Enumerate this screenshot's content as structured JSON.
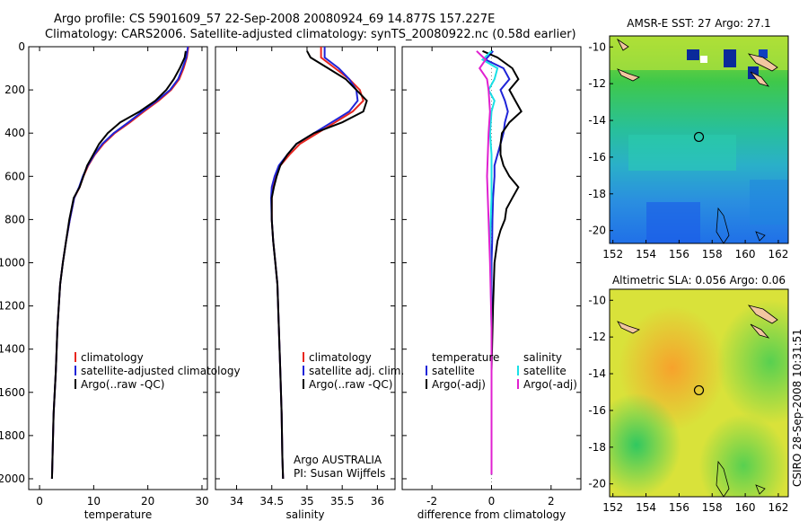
{
  "header": {
    "line1": "Argo profile: CS 5901609_57 22-Sep-2008 20080924_69 14.877S 157.227E",
    "line2": "Climatology: CARS2006. Satellite-adjusted climatology: synTS_20080922.nc (0.58d earlier)"
  },
  "side_text": "CSIRO 28-Sep-2008 10:31:51",
  "colors": {
    "clim": "#e8261f",
    "sat": "#1f24d8",
    "argo": "#000000",
    "sal_sat": "#19e0e6",
    "sal_argo": "#e020d0"
  },
  "chart_data": [
    {
      "type": "line",
      "id": "temperature",
      "xlabel": "temperature",
      "ylabel": "",
      "xlim": [
        -2,
        31
      ],
      "ylim": [
        2050,
        0
      ],
      "xticks": [
        0,
        10,
        20,
        30
      ],
      "yticks": [
        0,
        200,
        400,
        600,
        800,
        1000,
        1200,
        1400,
        1600,
        1800,
        2000
      ],
      "legend": [
        "climatology",
        "satellite-adjusted climatology",
        "Argo(..raw -QC)"
      ],
      "series": [
        {
          "name": "climatology",
          "x": [
            27.5,
            27.2,
            26.6,
            25.8,
            24.3,
            22.0,
            19.3,
            16.7,
            13.9,
            11.8,
            10.2,
            9.0,
            8.1,
            7.4,
            6.4,
            5.6,
            4.9,
            4.3,
            3.8,
            3.3,
            3.0,
            2.6,
            2.4,
            2.3
          ],
          "y": [
            0,
            50,
            100,
            150,
            200,
            250,
            300,
            350,
            400,
            450,
            500,
            550,
            600,
            650,
            700,
            800,
            900,
            1000,
            1100,
            1300,
            1500,
            1700,
            1900,
            2000
          ]
        },
        {
          "name": "satellite",
          "x": [
            27.4,
            27.1,
            26.4,
            25.6,
            24.1,
            21.7,
            19.0,
            16.4,
            13.7,
            11.6,
            10.1,
            8.9,
            8.0,
            7.3,
            6.4,
            5.6,
            4.9,
            4.3,
            3.8,
            3.3,
            3.0,
            2.6,
            2.4,
            2.3
          ],
          "y": [
            0,
            50,
            100,
            150,
            200,
            250,
            300,
            350,
            400,
            450,
            500,
            550,
            600,
            650,
            700,
            800,
            900,
            1000,
            1100,
            1300,
            1500,
            1700,
            1900,
            2000
          ]
        },
        {
          "name": "argo",
          "x": [
            27.0,
            26.8,
            25.9,
            24.8,
            23.4,
            21.4,
            18.5,
            14.9,
            12.6,
            11.0,
            9.9,
            8.8,
            8.1,
            7.4,
            6.3,
            5.5,
            4.9,
            4.3,
            3.8,
            3.3,
            3.0,
            2.6,
            2.4,
            2.3
          ],
          "y": [
            20,
            50,
            100,
            150,
            200,
            250,
            300,
            350,
            400,
            450,
            500,
            550,
            600,
            650,
            700,
            800,
            900,
            1000,
            1100,
            1300,
            1500,
            1700,
            1900,
            2000
          ]
        }
      ]
    },
    {
      "type": "line",
      "id": "salinity",
      "xlabel": "salinity",
      "ylabel": "",
      "xlim": [
        33.7,
        36.25
      ],
      "ylim": [
        2050,
        0
      ],
      "xticks": [
        34,
        34.5,
        35,
        35.5,
        36
      ],
      "legend": [
        "climatology",
        "satellite adj. clim.",
        "Argo(..raw -QC)"
      ],
      "annotation": [
        "Argo AUSTRALIA",
        "PI: Susan Wijffels"
      ],
      "series": [
        {
          "name": "climatology",
          "x": [
            35.2,
            35.2,
            35.4,
            35.6,
            35.75,
            35.8,
            35.65,
            35.4,
            35.15,
            34.9,
            34.75,
            34.62,
            34.55,
            34.52,
            34.5,
            34.5,
            34.52,
            34.55,
            34.58,
            34.6,
            34.62,
            34.64,
            34.65,
            34.66
          ],
          "y": [
            0,
            50,
            100,
            150,
            200,
            250,
            300,
            350,
            400,
            450,
            500,
            550,
            600,
            650,
            700,
            800,
            900,
            1000,
            1100,
            1300,
            1500,
            1700,
            1900,
            2000
          ]
        },
        {
          "name": "satellite",
          "x": [
            35.25,
            35.25,
            35.45,
            35.6,
            35.7,
            35.72,
            35.6,
            35.35,
            35.1,
            34.85,
            34.72,
            34.6,
            34.54,
            34.5,
            34.49,
            34.5,
            34.52,
            34.55,
            34.58,
            34.6,
            34.62,
            34.64,
            34.65,
            34.66
          ],
          "y": [
            0,
            50,
            100,
            150,
            200,
            250,
            300,
            350,
            400,
            450,
            500,
            550,
            600,
            650,
            700,
            800,
            900,
            1000,
            1100,
            1300,
            1500,
            1700,
            1900,
            2000
          ]
        },
        {
          "name": "argo",
          "x": [
            35.0,
            35.05,
            35.3,
            35.55,
            35.7,
            35.85,
            35.8,
            35.5,
            35.1,
            34.85,
            34.72,
            34.62,
            34.57,
            34.53,
            34.5,
            34.5,
            34.52,
            34.55,
            34.58,
            34.6,
            34.62,
            34.64,
            34.65,
            34.66
          ],
          "y": [
            20,
            50,
            100,
            150,
            200,
            250,
            300,
            350,
            400,
            450,
            500,
            550,
            600,
            650,
            700,
            800,
            900,
            1000,
            1100,
            1300,
            1500,
            1700,
            1900,
            2000
          ]
        }
      ]
    },
    {
      "type": "line",
      "id": "difference",
      "xlabel": "difference from climatology",
      "ylabel": "",
      "xlim": [
        -3,
        3
      ],
      "ylim": [
        2050,
        0
      ],
      "xticks": [
        -2,
        0,
        2
      ],
      "legend_left": [
        "temperature",
        "satellite",
        "Argo(-adj)"
      ],
      "legend_right": [
        "salinity",
        "satellite",
        "Argo(-adj)"
      ],
      "series": [
        {
          "name": "temperature satellite",
          "x": [
            0.05,
            -0.2,
            0.4,
            0.6,
            0.3,
            0.45,
            0.55,
            0.45,
            0.4,
            0.3,
            0.2,
            0.1,
            0.1,
            0.05,
            0.03,
            0.02,
            0.0,
            0.0,
            0.0,
            0.0,
            0.0
          ],
          "y": [
            20,
            60,
            100,
            150,
            200,
            250,
            300,
            350,
            400,
            450,
            500,
            550,
            600,
            700,
            800,
            900,
            1000,
            1200,
            1400,
            1700,
            1980
          ]
        },
        {
          "name": "temperature Argo(-adj)",
          "x": [
            -0.3,
            0.2,
            0.7,
            0.9,
            0.6,
            0.8,
            1.0,
            0.6,
            0.35,
            0.3,
            0.3,
            0.4,
            0.6,
            0.9,
            0.7,
            0.5,
            0.45,
            0.3,
            0.2,
            0.1,
            0.05,
            0.0,
            0.0
          ],
          "y": [
            20,
            50,
            100,
            150,
            200,
            250,
            300,
            350,
            400,
            450,
            500,
            550,
            600,
            650,
            700,
            750,
            800,
            850,
            900,
            1000,
            1200,
            1500,
            1980
          ]
        },
        {
          "name": "salinity satellite",
          "x": [
            0.0,
            -0.3,
            0.2,
            0.1,
            -0.1,
            0.1,
            0.0,
            -0.05,
            0.0,
            0.0,
            -0.05,
            0.0,
            0.0
          ],
          "y": [
            20,
            60,
            100,
            150,
            200,
            250,
            300,
            400,
            500,
            700,
            900,
            1300,
            1980
          ]
        },
        {
          "name": "salinity Argo(-adj)",
          "x": [
            -0.5,
            -0.2,
            -0.4,
            -0.15,
            -0.1,
            -0.05,
            -0.1,
            -0.15,
            -0.1,
            -0.05,
            0.0,
            0.0
          ],
          "y": [
            20,
            60,
            100,
            150,
            200,
            300,
            400,
            600,
            800,
            1000,
            1300,
            1980
          ]
        }
      ]
    },
    {
      "type": "heatmap",
      "id": "sst-map",
      "title": "AMSR-E SST: 27 Argo: 27.1",
      "xlim": [
        151.8,
        162.6
      ],
      "ylim": [
        -20.7,
        -9.4
      ],
      "xticks": [
        152,
        154,
        156,
        158,
        160,
        162
      ],
      "yticks": [
        -10,
        -12,
        -14,
        -16,
        -18,
        -20
      ],
      "marker": {
        "lon": 157.2,
        "lat": -14.9
      }
    },
    {
      "type": "heatmap",
      "id": "sla-map",
      "title": "Altimetric SLA: 0.056 Argo: 0.06",
      "xlim": [
        151.8,
        162.6
      ],
      "ylim": [
        -20.7,
        -9.4
      ],
      "xticks": [
        152,
        154,
        156,
        158,
        160,
        162
      ],
      "yticks": [
        -10,
        -12,
        -14,
        -16,
        -18,
        -20
      ],
      "marker": {
        "lon": 157.2,
        "lat": -14.9
      }
    }
  ]
}
